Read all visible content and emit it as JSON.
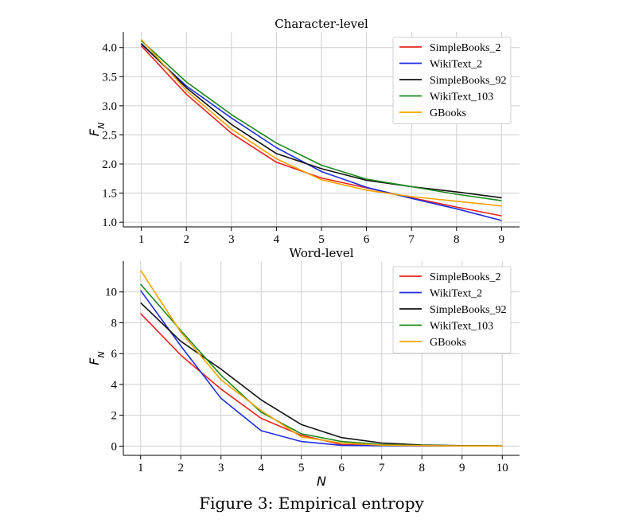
{
  "chart_data": [
    {
      "type": "line",
      "title": "Character-level",
      "xlabel": "",
      "ylabel_base": "F",
      "ylabel_sub": "N",
      "x": [
        1,
        2,
        3,
        4,
        5,
        6,
        7,
        8,
        9
      ],
      "xlim": [
        0.6,
        9.4
      ],
      "ylim": [
        0.92,
        4.27
      ],
      "xticks": [
        1,
        2,
        3,
        4,
        5,
        6,
        7,
        8,
        9
      ],
      "yticks": [
        1.0,
        1.5,
        2.0,
        2.5,
        3.0,
        3.5,
        4.0
      ],
      "ytick_labels": [
        "1.0",
        "1.5",
        "2.0",
        "2.5",
        "3.0",
        "3.5",
        "4.0"
      ],
      "grid": true,
      "legend_position": "top-right",
      "series": [
        {
          "name": "SimpleBooks_2",
          "color": "#e8221b",
          "values": [
            4.03,
            3.2,
            2.53,
            2.03,
            1.76,
            1.59,
            1.42,
            1.26,
            1.11
          ]
        },
        {
          "name": "WikiText_2",
          "color": "#1f2de0",
          "values": [
            4.06,
            3.34,
            2.79,
            2.28,
            1.87,
            1.6,
            1.41,
            1.23,
            1.03
          ]
        },
        {
          "name": "SimpleBooks_92",
          "color": "#111111",
          "values": [
            4.07,
            3.31,
            2.68,
            2.18,
            1.92,
            1.72,
            1.61,
            1.52,
            1.42
          ]
        },
        {
          "name": "WikiText_103",
          "color": "#1a8a1a",
          "values": [
            4.12,
            3.41,
            2.85,
            2.36,
            1.98,
            1.74,
            1.61,
            1.48,
            1.37
          ]
        },
        {
          "name": "GBooks",
          "color": "#f5a200",
          "values": [
            4.14,
            3.26,
            2.6,
            2.09,
            1.73,
            1.55,
            1.44,
            1.36,
            1.28
          ]
        }
      ]
    },
    {
      "type": "line",
      "title": "Word-level",
      "xlabel": "N",
      "ylabel_base": "F",
      "ylabel_sub": "N",
      "x": [
        1,
        2,
        3,
        4,
        5,
        6,
        7,
        8,
        9,
        10
      ],
      "xlim": [
        0.57,
        10.43
      ],
      "ylim": [
        -0.6,
        12.0
      ],
      "xticks": [
        1,
        2,
        3,
        4,
        5,
        6,
        7,
        8,
        9,
        10
      ],
      "yticks": [
        0,
        2,
        4,
        6,
        8,
        10
      ],
      "ytick_labels": [
        "0",
        "2",
        "4",
        "6",
        "8",
        "10"
      ],
      "grid": true,
      "legend_position": "top-right",
      "series": [
        {
          "name": "SimpleBooks_2",
          "color": "#e8221b",
          "values": [
            8.6,
            5.9,
            3.7,
            1.8,
            0.7,
            0.1,
            0.05,
            0.02,
            0.01,
            0.01
          ]
        },
        {
          "name": "WikiText_2",
          "color": "#1f2de0",
          "values": [
            10.1,
            6.5,
            3.1,
            1.0,
            0.3,
            0.05,
            0.02,
            0.01,
            0.01,
            0.01
          ]
        },
        {
          "name": "SimpleBooks_92",
          "color": "#111111",
          "values": [
            9.3,
            6.8,
            5.0,
            3.0,
            1.4,
            0.55,
            0.2,
            0.07,
            0.03,
            0.01
          ]
        },
        {
          "name": "WikiText_103",
          "color": "#1a8a1a",
          "values": [
            10.5,
            7.5,
            4.6,
            2.2,
            0.8,
            0.3,
            0.1,
            0.04,
            0.02,
            0.01
          ]
        },
        {
          "name": "GBooks",
          "color": "#f5a200",
          "values": [
            11.4,
            7.4,
            4.3,
            2.3,
            0.6,
            0.2,
            0.06,
            0.03,
            0.01,
            0.01
          ]
        }
      ]
    }
  ],
  "caption": "Figure 3: Empirical entropy"
}
